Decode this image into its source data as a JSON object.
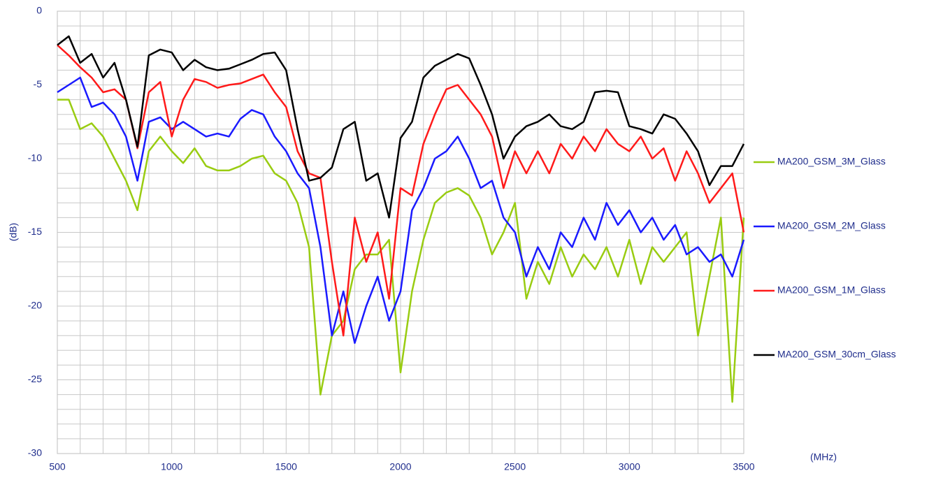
{
  "chart_data": {
    "type": "line",
    "x_label": "(MHz)",
    "y_label": "(dB)",
    "x": [
      500,
      550,
      600,
      650,
      700,
      750,
      800,
      850,
      900,
      950,
      1000,
      1050,
      1100,
      1150,
      1200,
      1250,
      1300,
      1350,
      1400,
      1450,
      1500,
      1550,
      1600,
      1650,
      1700,
      1750,
      1800,
      1850,
      1900,
      1950,
      2000,
      2050,
      2100,
      2150,
      2200,
      2250,
      2300,
      2350,
      2400,
      2450,
      2500,
      2550,
      2600,
      2650,
      2700,
      2750,
      2800,
      2850,
      2900,
      2950,
      3000,
      3050,
      3100,
      3150,
      3200,
      3250,
      3300,
      3350,
      3400,
      3450,
      3500
    ],
    "series": [
      {
        "name": "MA200_GSM_3M_Glass",
        "color": "#99cc11",
        "values": [
          -6,
          -6,
          -8,
          -7.6,
          -8.5,
          -10,
          -11.5,
          -13.5,
          -9.5,
          -8.5,
          -9.5,
          -10.3,
          -9.3,
          -10.5,
          -10.8,
          -10.8,
          -10.5,
          -10,
          -9.8,
          -11,
          -11.5,
          -13,
          -16,
          -26,
          -22,
          -21,
          -17.5,
          -16.5,
          -16.5,
          -15.5,
          -24.5,
          -19,
          -15.5,
          -13,
          -12.3,
          -12,
          -12.5,
          -14,
          -16.5,
          -15,
          -13,
          -19.5,
          -17,
          -18.5,
          -16,
          -18,
          -16.5,
          -17.5,
          -16,
          -18,
          -15.5,
          -18.5,
          -16,
          -17,
          -16,
          -15,
          -22,
          -18,
          -14,
          -26.5,
          -14
        ]
      },
      {
        "name": "MA200_GSM_2M_Glass",
        "color": "#1a1aff",
        "values": [
          -5.5,
          -5,
          -4.5,
          -6.5,
          -6.2,
          -7,
          -8.5,
          -11.5,
          -7.5,
          -7.2,
          -8,
          -7.5,
          -8,
          -8.5,
          -8.3,
          -8.5,
          -7.3,
          -6.7,
          -7,
          -8.5,
          -9.5,
          -11,
          -12,
          -16,
          -22,
          -19,
          -22.5,
          -20,
          -18,
          -21,
          -19,
          -13.5,
          -12,
          -10,
          -9.5,
          -8.5,
          -10,
          -12,
          -11.5,
          -14,
          -15,
          -18,
          -16,
          -17.5,
          -15,
          -16,
          -14,
          -15.5,
          -13,
          -14.5,
          -13.5,
          -15,
          -14,
          -15.5,
          -14.5,
          -16.5,
          -16,
          -17,
          -16.5,
          -18,
          -15.5
        ]
      },
      {
        "name": "MA200_GSM_1M_Glass",
        "color": "#ff1a1a",
        "values": [
          -2.3,
          -3,
          -3.8,
          -4.5,
          -5.5,
          -5.3,
          -6,
          -9.3,
          -5.5,
          -4.8,
          -8.5,
          -6,
          -4.6,
          -4.8,
          -5.2,
          -5,
          -4.9,
          -4.6,
          -4.3,
          -5.5,
          -6.5,
          -9.5,
          -11,
          -11.3,
          -17,
          -22,
          -14,
          -17,
          -15,
          -19.5,
          -12,
          -12.5,
          -9,
          -7,
          -5.3,
          -5,
          -6,
          -7,
          -8.5,
          -12,
          -9.5,
          -11,
          -9.5,
          -11,
          -9,
          -10,
          -8.5,
          -9.5,
          -8,
          -9,
          -9.5,
          -8.5,
          -10,
          -9.3,
          -11.5,
          -9.5,
          -11,
          -13,
          -12,
          -11,
          -15
        ]
      },
      {
        "name": "MA200_GSM_30cm_Glass",
        "color": "#000000",
        "values": [
          -2.3,
          -1.7,
          -3.5,
          -2.9,
          -4.5,
          -3.5,
          -6,
          -9.2,
          -3,
          -2.6,
          -2.8,
          -4,
          -3.3,
          -3.8,
          -4,
          -3.9,
          -3.6,
          -3.3,
          -2.9,
          -2.8,
          -4,
          -8,
          -11.5,
          -11.3,
          -10.6,
          -8,
          -7.5,
          -11.5,
          -11,
          -14,
          -8.6,
          -7.5,
          -4.5,
          -3.7,
          -3.3,
          -2.9,
          -3.2,
          -5,
          -7,
          -10,
          -8.5,
          -7.8,
          -7.5,
          -7,
          -7.8,
          -8,
          -7.5,
          -5.5,
          -5.4,
          -5.5,
          -7.8,
          -8,
          -8.3,
          -7,
          -7.3,
          -8.3,
          -9.5,
          -11.8,
          -10.5,
          -10.5,
          -9
        ]
      }
    ],
    "xlim": [
      500,
      3500
    ],
    "ylim": [
      -30,
      0
    ],
    "xticks": [
      500,
      1000,
      1500,
      2000,
      2500,
      3000,
      3500
    ],
    "yticks": [
      -30,
      -25,
      -20,
      -15,
      -10,
      -5,
      0
    ],
    "grid": true,
    "legend": "right"
  }
}
